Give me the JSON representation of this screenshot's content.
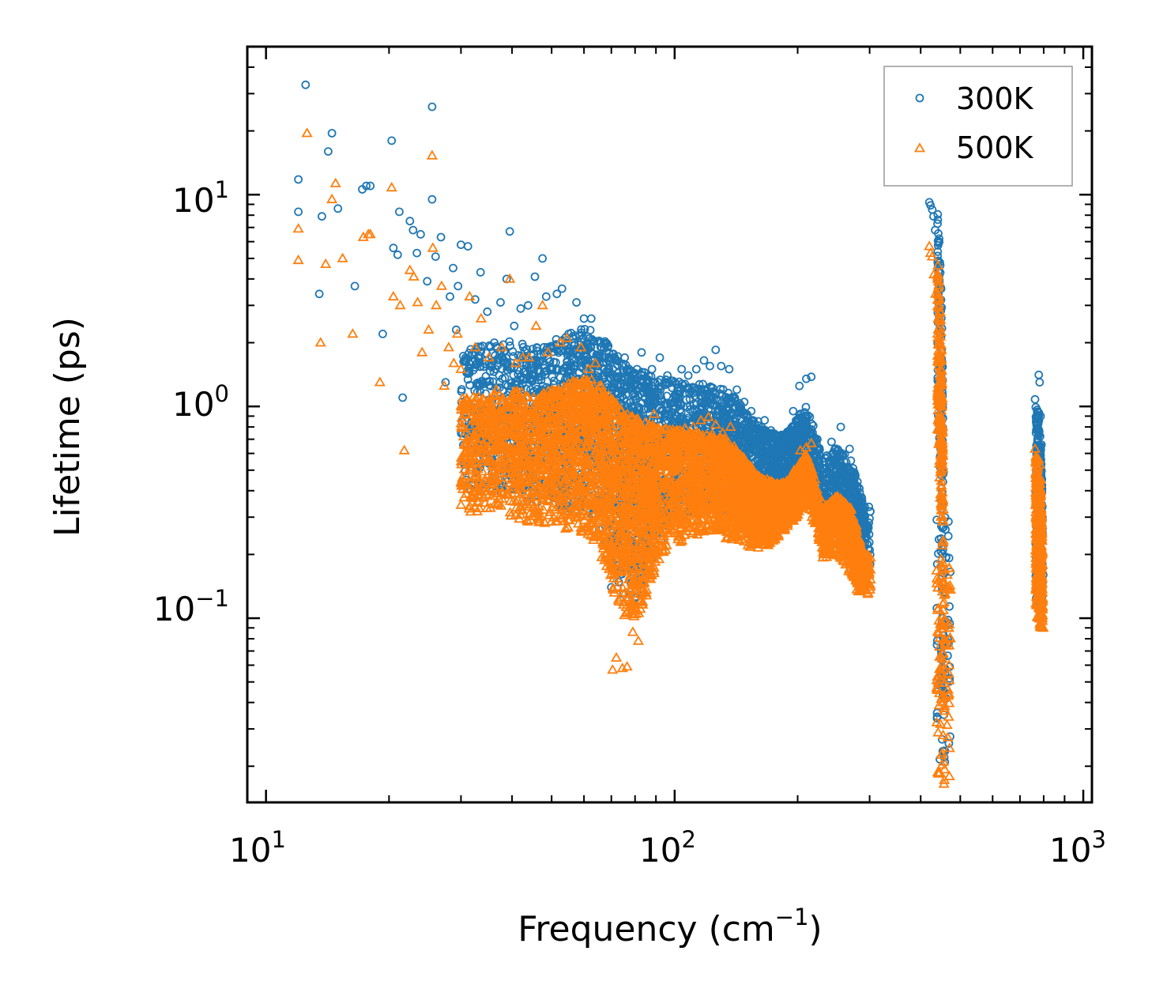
{
  "chart_data": {
    "type": "scatter",
    "title": "",
    "xlabel": "Frequency (cm",
    "xlabel_sup": "−1",
    "xlabel_suffix": ")",
    "ylabel": "Lifetime (ps)",
    "xscale": "log",
    "yscale": "log",
    "xlim": [
      9.0,
      1050
    ],
    "ylim": [
      0.0135,
      50
    ],
    "x_ticks": [
      {
        "value": 10,
        "base": "10",
        "exp": "1"
      },
      {
        "value": 100,
        "base": "10",
        "exp": "2"
      },
      {
        "value": 1000,
        "base": "10",
        "exp": "3"
      }
    ],
    "y_ticks": [
      {
        "value": 0.1,
        "base": "10",
        "exp": "−1"
      },
      {
        "value": 1,
        "base": "10",
        "exp": "0"
      },
      {
        "value": 10,
        "base": "10",
        "exp": "1"
      }
    ],
    "legend_position": "top-right",
    "series": [
      {
        "name": "300K",
        "marker": "circle",
        "color": "#1f77b4",
        "points": [
          [
            12.0,
            11.8
          ],
          [
            12.0,
            8.3
          ],
          [
            12.5,
            33.0
          ],
          [
            13.5,
            3.4
          ],
          [
            13.7,
            7.9
          ],
          [
            14.2,
            16.0
          ],
          [
            14.5,
            19.5
          ],
          [
            15.0,
            8.6
          ],
          [
            16.5,
            3.7
          ],
          [
            17.2,
            10.6
          ],
          [
            17.6,
            11.0
          ],
          [
            18.0,
            11.0
          ],
          [
            19.3,
            2.2
          ],
          [
            20.3,
            18.0
          ],
          [
            20.5,
            5.6
          ],
          [
            21.0,
            5.2
          ],
          [
            21.2,
            8.3
          ],
          [
            21.6,
            1.1
          ],
          [
            22.5,
            7.5
          ],
          [
            22.9,
            6.8
          ],
          [
            23.4,
            5.3
          ],
          [
            23.9,
            6.5
          ],
          [
            24.8,
            3.9
          ],
          [
            25.5,
            26.0
          ],
          [
            25.5,
            9.5
          ],
          [
            26.0,
            5.1
          ],
          [
            26.8,
            6.3
          ],
          [
            27.5,
            1.3
          ],
          [
            28.2,
            3.3
          ],
          [
            28.7,
            4.5
          ],
          [
            29.2,
            2.3
          ],
          [
            29.5,
            3.7
          ],
          [
            30.0,
            5.8
          ],
          [
            30.8,
            1.7
          ],
          [
            31.2,
            5.7
          ],
          [
            32.5,
            3.2
          ],
          [
            33.5,
            4.3
          ],
          [
            34.8,
            2.8
          ],
          [
            36.2,
            2.0
          ],
          [
            37.5,
            3.1
          ],
          [
            38.8,
            4.0
          ],
          [
            39.5,
            6.7
          ],
          [
            40.5,
            2.4
          ],
          [
            42.0,
            2.9
          ],
          [
            43.8,
            3.0
          ],
          [
            45.5,
            4.1
          ],
          [
            47.5,
            5.0
          ],
          [
            48.5,
            3.3
          ],
          [
            49.5,
            1.9
          ],
          [
            51.5,
            3.4
          ],
          [
            53.0,
            3.6
          ],
          [
            55.0,
            2.2
          ],
          [
            57.5,
            3.1
          ],
          [
            60.0,
            2.6
          ],
          [
            62.5,
            2.6
          ],
          [
            65.0,
            1.7
          ],
          [
            70.0,
            0.14
          ],
          [
            72.0,
            0.17
          ],
          [
            75.5,
            1.7
          ],
          [
            79.0,
            1.4
          ],
          [
            83.0,
            1.8
          ],
          [
            88.0,
            1.5
          ],
          [
            92.0,
            1.7
          ],
          [
            96.0,
            1.4
          ],
          [
            100.0,
            1.3
          ],
          [
            104.0,
            1.5
          ],
          [
            108.0,
            1.4
          ],
          [
            113.0,
            1.5
          ],
          [
            118.0,
            1.65
          ],
          [
            122.0,
            1.55
          ],
          [
            126.0,
            1.85
          ],
          [
            130.0,
            1.55
          ],
          [
            136.0,
            1.5
          ],
          [
            142.0,
            1.2
          ],
          [
            148.0,
            1.05
          ],
          [
            154.0,
            0.95
          ],
          [
            160.0,
            0.85
          ],
          [
            166.0,
            0.86
          ],
          [
            172.0,
            0.77
          ],
          [
            180.0,
            0.68
          ],
          [
            188.0,
            0.73
          ],
          [
            195.0,
            0.95
          ],
          [
            202.0,
            1.25
          ],
          [
            210.0,
            1.35
          ],
          [
            216.0,
            1.38
          ],
          [
            232.0,
            0.55
          ],
          [
            242.0,
            0.68
          ],
          [
            255.0,
            0.8
          ],
          [
            268.0,
            0.63
          ],
          [
            280.0,
            0.42
          ],
          [
            292.0,
            0.3
          ],
          [
            300.0,
            0.21
          ],
          [
            420.0,
            9.2
          ],
          [
            423.0,
            8.9
          ],
          [
            427.0,
            8.5
          ],
          [
            430.0,
            7.9
          ],
          [
            434.0,
            6.8
          ],
          [
            440.0,
            7.3
          ],
          [
            442.0,
            4.3
          ],
          [
            445.0,
            1.95
          ],
          [
            447.0,
            0.7
          ],
          [
            449.0,
            0.36
          ],
          [
            451.0,
            0.22
          ],
          [
            452.0,
            0.1
          ],
          [
            453.0,
            0.074
          ],
          [
            454.0,
            0.052
          ],
          [
            455.0,
            0.043
          ],
          [
            456.0,
            0.035
          ],
          [
            762.0,
            1.08
          ],
          [
            766.0,
            0.75
          ],
          [
            770.0,
            0.42
          ],
          [
            774.0,
            0.27
          ],
          [
            778.0,
            1.41
          ],
          [
            782.0,
            1.3
          ],
          [
            786.0,
            0.9
          ],
          [
            790.0,
            0.66
          ],
          [
            794.0,
            0.18
          ],
          [
            798.0,
            0.16
          ]
        ]
      },
      {
        "name": "500K",
        "marker": "triangle",
        "color": "#ff7f0e",
        "points": [
          [
            12.0,
            6.9
          ],
          [
            12.0,
            4.9
          ],
          [
            12.6,
            19.5
          ],
          [
            13.6,
            2.0
          ],
          [
            14.0,
            4.7
          ],
          [
            14.5,
            9.5
          ],
          [
            14.8,
            11.3
          ],
          [
            15.4,
            5.0
          ],
          [
            16.3,
            2.2
          ],
          [
            17.3,
            6.3
          ],
          [
            17.8,
            6.5
          ],
          [
            18.0,
            6.5
          ],
          [
            19.0,
            1.3
          ],
          [
            20.3,
            10.8
          ],
          [
            20.5,
            3.3
          ],
          [
            21.3,
            3.0
          ],
          [
            21.8,
            0.62
          ],
          [
            22.5,
            4.4
          ],
          [
            23.0,
            4.1
          ],
          [
            23.5,
            3.1
          ],
          [
            24.1,
            1.8
          ],
          [
            25.0,
            2.3
          ],
          [
            25.5,
            15.3
          ],
          [
            25.6,
            5.6
          ],
          [
            26.1,
            3.0
          ],
          [
            26.9,
            3.7
          ],
          [
            27.3,
            1.25
          ],
          [
            28.0,
            1.9
          ],
          [
            28.8,
            1.6
          ],
          [
            29.4,
            2.2
          ],
          [
            30.0,
            1.5
          ],
          [
            30.8,
            0.98
          ],
          [
            31.5,
            3.3
          ],
          [
            32.5,
            1.9
          ],
          [
            33.6,
            2.6
          ],
          [
            35.1,
            1.7
          ],
          [
            36.6,
            1.2
          ],
          [
            37.8,
            1.9
          ],
          [
            38.8,
            1.0
          ],
          [
            39.5,
            4.0
          ],
          [
            40.8,
            1.6
          ],
          [
            42.5,
            1.7
          ],
          [
            44.0,
            1.7
          ],
          [
            45.8,
            2.4
          ],
          [
            47.5,
            3.0
          ],
          [
            49.0,
            1.8
          ],
          [
            50.2,
            1.2
          ],
          [
            52.5,
            2.0
          ],
          [
            54.5,
            2.1
          ],
          [
            56.2,
            1.3
          ],
          [
            59.0,
            1.9
          ],
          [
            61.5,
            1.5
          ],
          [
            64.0,
            1.6
          ],
          [
            66.0,
            1.0
          ],
          [
            70.5,
            0.057
          ],
          [
            72.0,
            0.065
          ],
          [
            74.5,
            0.058
          ],
          [
            76.5,
            0.059
          ],
          [
            79.0,
            0.086
          ],
          [
            81.5,
            0.078
          ],
          [
            85.0,
            0.64
          ],
          [
            89.0,
            0.92
          ],
          [
            93.0,
            0.77
          ],
          [
            97.0,
            0.67
          ],
          [
            101.0,
            0.77
          ],
          [
            106.0,
            0.79
          ],
          [
            111.0,
            0.8
          ],
          [
            116.0,
            0.86
          ],
          [
            121.0,
            0.89
          ],
          [
            126.0,
            0.82
          ],
          [
            131.0,
            0.75
          ],
          [
            137.0,
            0.8
          ],
          [
            143.0,
            0.56
          ],
          [
            149.0,
            0.51
          ],
          [
            155.0,
            0.45
          ],
          [
            161.0,
            0.39
          ],
          [
            167.0,
            0.4
          ],
          [
            173.0,
            0.36
          ],
          [
            181.0,
            0.34
          ],
          [
            189.0,
            0.4
          ],
          [
            196.0,
            0.5
          ],
          [
            203.0,
            0.62
          ],
          [
            210.0,
            0.64
          ],
          [
            216.0,
            0.67
          ],
          [
            232.0,
            0.25
          ],
          [
            242.0,
            0.3
          ],
          [
            252.0,
            0.36
          ],
          [
            265.0,
            0.3
          ],
          [
            275.0,
            0.18
          ],
          [
            285.0,
            0.14
          ],
          [
            297.0,
            0.13
          ],
          [
            420.0,
            5.7
          ],
          [
            423.0,
            5.3
          ],
          [
            427.0,
            5.1
          ],
          [
            431.0,
            4.2
          ],
          [
            435.0,
            3.4
          ],
          [
            440.0,
            2.2
          ],
          [
            442.0,
            1.1
          ],
          [
            445.0,
            0.8
          ],
          [
            447.0,
            0.37
          ],
          [
            449.0,
            0.19
          ],
          [
            451.0,
            0.095
          ],
          [
            452.0,
            0.06
          ],
          [
            453.0,
            0.04
          ],
          [
            454.0,
            0.028
          ],
          [
            455.0,
            0.021
          ],
          [
            456.0,
            0.0165
          ],
          [
            457.0,
            0.0172
          ],
          [
            762.0,
            0.63
          ],
          [
            766.0,
            0.48
          ],
          [
            770.0,
            0.3
          ],
          [
            774.0,
            0.17
          ],
          [
            778.0,
            0.56
          ],
          [
            782.0,
            0.53
          ],
          [
            786.0,
            0.45
          ],
          [
            790.0,
            0.3
          ],
          [
            794.0,
            0.1
          ],
          [
            798.0,
            0.09
          ]
        ],
        "envelope": [
          [
            30.0,
            0.32,
            1.1
          ],
          [
            35.0,
            0.31,
            1.15
          ],
          [
            40.0,
            0.3,
            1.2
          ],
          [
            45.0,
            0.28,
            1.15
          ],
          [
            50.0,
            0.28,
            1.2
          ],
          [
            55.0,
            0.26,
            1.3
          ],
          [
            60.0,
            0.25,
            1.4
          ],
          [
            65.0,
            0.21,
            1.3
          ],
          [
            70.0,
            0.14,
            1.1
          ],
          [
            75.0,
            0.1,
            0.95
          ],
          [
            80.0,
            0.09,
            0.9
          ],
          [
            85.0,
            0.12,
            0.85
          ],
          [
            90.0,
            0.17,
            0.8
          ],
          [
            100.0,
            0.22,
            0.78
          ],
          [
            110.0,
            0.24,
            0.75
          ],
          [
            120.0,
            0.25,
            0.75
          ],
          [
            130.0,
            0.24,
            0.72
          ],
          [
            140.0,
            0.23,
            0.65
          ],
          [
            150.0,
            0.22,
            0.55
          ],
          [
            160.0,
            0.21,
            0.48
          ],
          [
            170.0,
            0.22,
            0.45
          ],
          [
            180.0,
            0.24,
            0.43
          ],
          [
            190.0,
            0.27,
            0.45
          ],
          [
            200.0,
            0.3,
            0.52
          ],
          [
            210.0,
            0.35,
            0.6
          ],
          [
            230.0,
            0.19,
            0.33
          ],
          [
            250.0,
            0.2,
            0.38
          ],
          [
            270.0,
            0.16,
            0.33
          ],
          [
            290.0,
            0.13,
            0.2
          ],
          [
            440.0,
            0.7,
            5.0
          ],
          [
            455.0,
            0.0165,
            0.18
          ],
          [
            765.0,
            0.085,
            0.6
          ],
          [
            780.0,
            0.09,
            0.55
          ],
          [
            795.0,
            0.09,
            0.2
          ]
        ]
      }
    ]
  }
}
